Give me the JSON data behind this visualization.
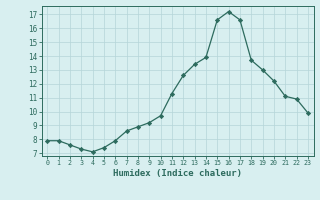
{
  "x": [
    0,
    1,
    2,
    3,
    4,
    5,
    6,
    7,
    8,
    9,
    10,
    11,
    12,
    13,
    14,
    15,
    16,
    17,
    18,
    19,
    20,
    21,
    22,
    23
  ],
  "y": [
    7.9,
    7.9,
    7.6,
    7.3,
    7.1,
    7.4,
    7.9,
    8.6,
    8.9,
    9.2,
    9.7,
    11.3,
    12.6,
    13.4,
    13.9,
    16.6,
    17.2,
    16.6,
    13.7,
    13.0,
    12.2,
    11.1,
    10.9,
    9.9
  ],
  "line_color": "#2d6b5e",
  "marker": "D",
  "marker_size": 2.2,
  "bg_color": "#d8eff0",
  "grid_color": "#b5d5d8",
  "xlabel": "Humidex (Indice chaleur)",
  "ylabel_ticks": [
    7,
    8,
    9,
    10,
    11,
    12,
    13,
    14,
    15,
    16,
    17
  ],
  "ylim": [
    6.8,
    17.6
  ],
  "xlim": [
    -0.5,
    23.5
  ],
  "tick_color": "#2d6b5e",
  "label_color": "#2d6b5e"
}
